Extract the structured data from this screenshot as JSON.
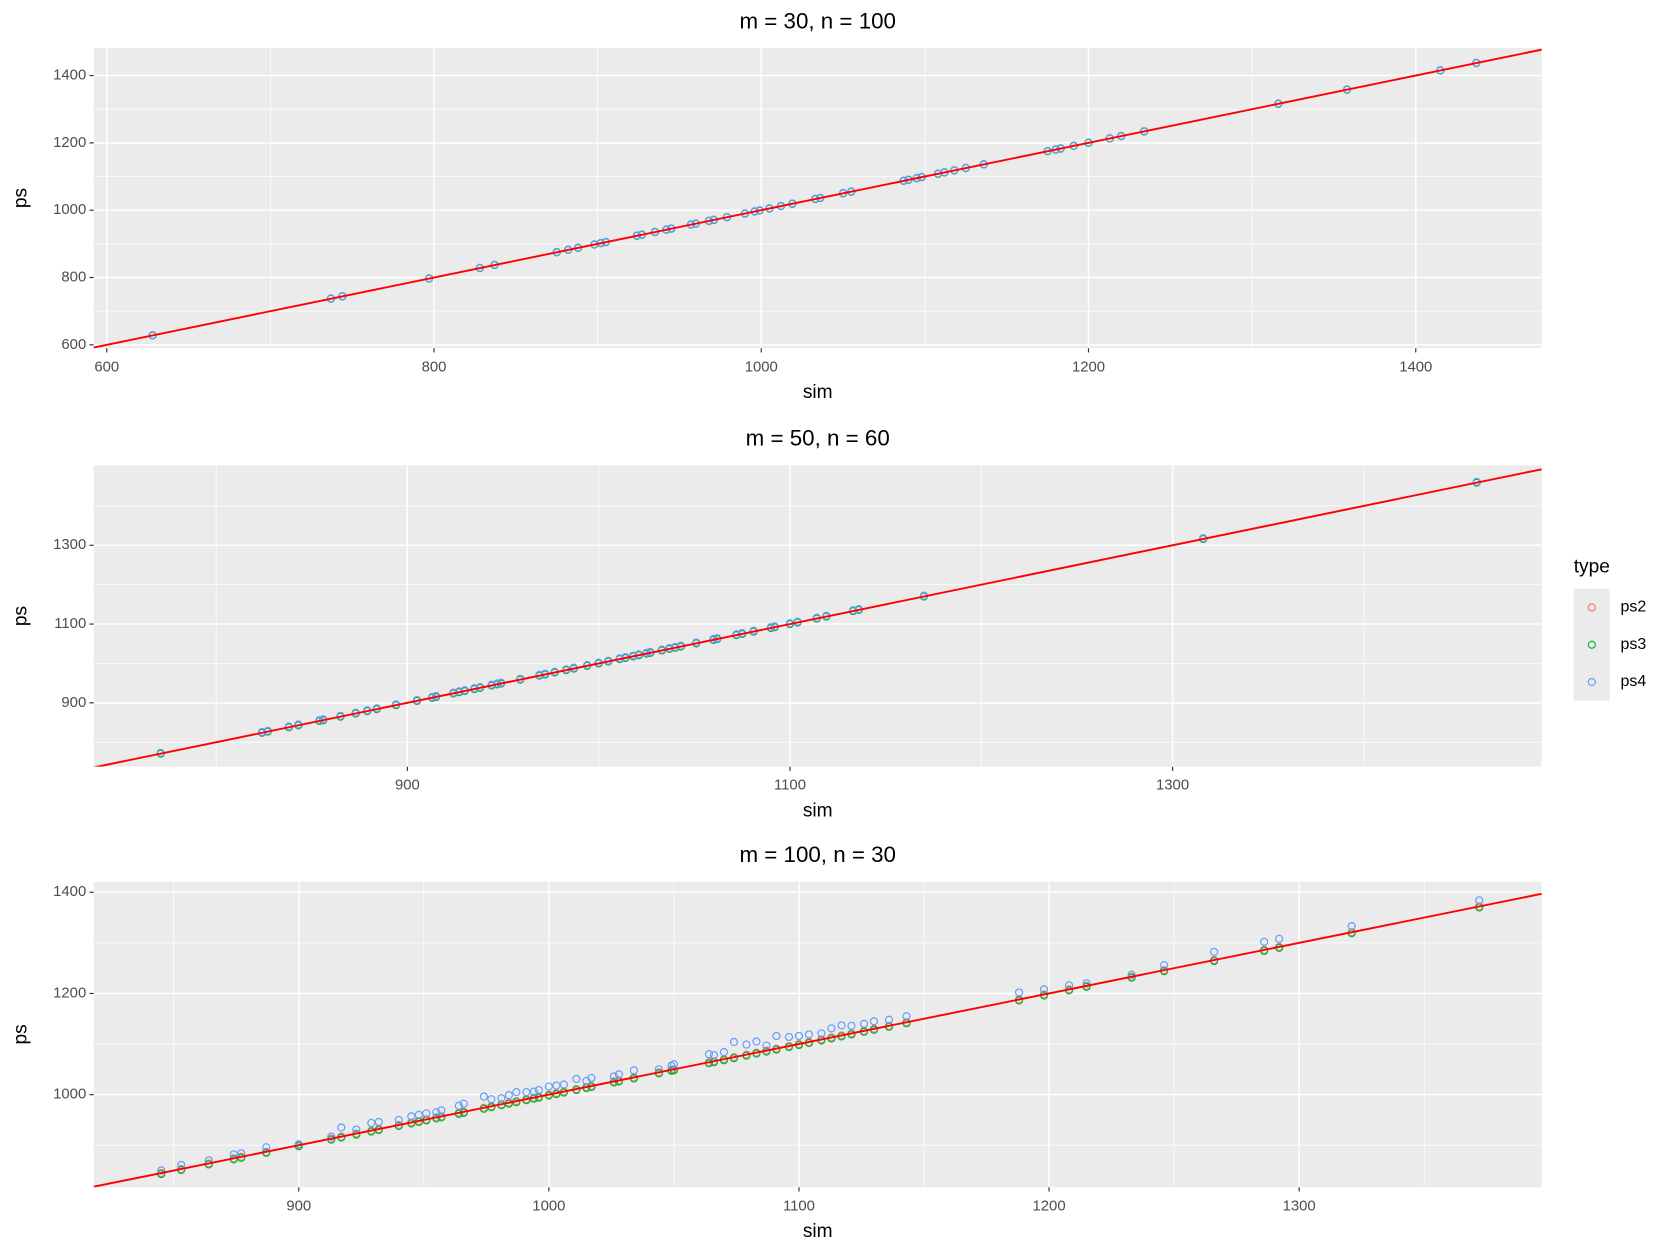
{
  "chart_data": [
    {
      "type": "scatter",
      "title": "m = 30, n = 100",
      "x_label": "sim",
      "y_label": "ps",
      "xlim": [
        592,
        1477
      ],
      "ylim": [
        590,
        1482
      ],
      "xticks": [
        600,
        800,
        1000,
        1200,
        1400
      ],
      "yticks": [
        600,
        800,
        1000,
        1200,
        1400
      ],
      "grid": true,
      "legend": {
        "title": "type",
        "position": "right"
      },
      "abline": {
        "intercept": 0,
        "slope": 1,
        "color": "#ff0000"
      },
      "x": [
        628,
        737,
        744,
        797,
        828,
        837,
        875,
        882,
        888,
        898,
        902,
        905,
        924,
        927,
        935,
        942,
        945,
        957,
        960,
        968,
        971,
        979,
        990,
        996,
        999,
        1005,
        1012,
        1019,
        1033,
        1036,
        1050,
        1055,
        1087,
        1090,
        1095,
        1098,
        1108,
        1112,
        1118,
        1125,
        1136,
        1175,
        1180,
        1183,
        1191,
        1200,
        1213,
        1220,
        1234,
        1316,
        1358,
        1415,
        1437
      ],
      "series": [
        {
          "name": "ps2",
          "color": "#F8766D",
          "values": [
            628,
            737,
            744,
            797,
            828,
            837,
            875,
            882,
            888,
            898,
            902,
            905,
            924,
            927,
            935,
            942,
            945,
            957,
            960,
            968,
            971,
            979,
            990,
            996,
            999,
            1005,
            1012,
            1019,
            1033,
            1036,
            1050,
            1055,
            1087,
            1090,
            1095,
            1098,
            1108,
            1112,
            1118,
            1125,
            1136,
            1175,
            1180,
            1183,
            1191,
            1200,
            1213,
            1220,
            1234,
            1316,
            1358,
            1415,
            1437
          ]
        },
        {
          "name": "ps3",
          "color": "#00BA38",
          "values": [
            628,
            737,
            744,
            797,
            828,
            837,
            875,
            882,
            888,
            898,
            902,
            905,
            924,
            927,
            935,
            942,
            945,
            957,
            960,
            968,
            971,
            979,
            990,
            996,
            999,
            1005,
            1012,
            1019,
            1033,
            1036,
            1050,
            1055,
            1087,
            1090,
            1095,
            1098,
            1108,
            1112,
            1118,
            1125,
            1136,
            1175,
            1180,
            1183,
            1191,
            1200,
            1213,
            1220,
            1234,
            1316,
            1358,
            1415,
            1437
          ]
        },
        {
          "name": "ps4",
          "color": "#619CFF",
          "values": [
            629,
            738,
            745,
            798,
            829,
            838,
            876,
            883,
            889,
            899,
            903,
            906,
            925,
            928,
            936,
            943,
            946,
            958,
            961,
            969,
            972,
            980,
            991,
            997,
            1000,
            1006,
            1013,
            1020,
            1034,
            1037,
            1051,
            1056,
            1088,
            1091,
            1096,
            1099,
            1109,
            1113,
            1119,
            1126,
            1137,
            1176,
            1181,
            1184,
            1192,
            1201,
            1214,
            1221,
            1235,
            1317,
            1359,
            1416,
            1438
          ]
        }
      ]
    },
    {
      "type": "scatter",
      "title": "m = 50, n = 60",
      "x_label": "sim",
      "y_label": "ps",
      "xlim": [
        736,
        1493
      ],
      "ylim": [
        738,
        1503
      ],
      "xticks": [
        900,
        1100,
        1300
      ],
      "yticks": [
        900,
        1100,
        1300
      ],
      "grid": true,
      "abline": {
        "intercept": 0,
        "slope": 1,
        "color": "#ff0000"
      },
      "x": [
        771,
        824,
        827,
        838,
        843,
        854,
        856,
        865,
        873,
        879,
        884,
        894,
        905,
        913,
        915,
        924,
        927,
        930,
        935,
        938,
        944,
        947,
        949,
        959,
        969,
        972,
        977,
        983,
        987,
        994,
        1000,
        1005,
        1011,
        1014,
        1018,
        1021,
        1025,
        1027,
        1033,
        1037,
        1040,
        1043,
        1051,
        1060,
        1062,
        1072,
        1075,
        1081,
        1090,
        1092,
        1100,
        1104,
        1114,
        1119,
        1133,
        1136,
        1170,
        1316,
        1459
      ],
      "series": [
        {
          "name": "ps2",
          "color": "#F8766D",
          "values": [
            771,
            824,
            827,
            838,
            843,
            854,
            856,
            865,
            873,
            879,
            884,
            894,
            905,
            913,
            915,
            924,
            927,
            930,
            935,
            938,
            944,
            947,
            949,
            959,
            969,
            972,
            977,
            983,
            987,
            994,
            1000,
            1005,
            1011,
            1014,
            1018,
            1021,
            1025,
            1027,
            1033,
            1037,
            1040,
            1043,
            1051,
            1060,
            1062,
            1072,
            1075,
            1081,
            1090,
            1092,
            1100,
            1104,
            1114,
            1119,
            1133,
            1136,
            1170,
            1316,
            1459
          ]
        },
        {
          "name": "ps3",
          "color": "#00BA38",
          "values": [
            771,
            824,
            827,
            838,
            843,
            854,
            856,
            865,
            873,
            879,
            884,
            894,
            905,
            913,
            915,
            924,
            927,
            930,
            935,
            938,
            944,
            947,
            949,
            959,
            969,
            972,
            977,
            983,
            987,
            994,
            1000,
            1005,
            1011,
            1014,
            1018,
            1021,
            1025,
            1027,
            1033,
            1037,
            1040,
            1043,
            1051,
            1060,
            1062,
            1072,
            1075,
            1081,
            1090,
            1092,
            1100,
            1104,
            1114,
            1119,
            1133,
            1136,
            1170,
            1316,
            1459
          ]
        },
        {
          "name": "ps4",
          "color": "#619CFF",
          "values": [
            773,
            826,
            829,
            840,
            845,
            856,
            858,
            867,
            875,
            881,
            886,
            896,
            907,
            915,
            917,
            926,
            929,
            932,
            937,
            940,
            946,
            949,
            951,
            961,
            971,
            974,
            979,
            985,
            989,
            996,
            1002,
            1007,
            1013,
            1016,
            1020,
            1023,
            1027,
            1029,
            1035,
            1039,
            1042,
            1045,
            1053,
            1062,
            1064,
            1074,
            1077,
            1083,
            1092,
            1094,
            1102,
            1106,
            1116,
            1121,
            1135,
            1138,
            1172,
            1318,
            1461
          ]
        }
      ]
    },
    {
      "type": "scatter",
      "title": "m = 100, n = 30",
      "x_label": "sim",
      "y_label": "ps",
      "xlim": [
        818,
        1397
      ],
      "ylim": [
        817,
        1421
      ],
      "xticks": [
        900,
        1000,
        1100,
        1200,
        1300
      ],
      "yticks": [
        1000,
        1200,
        1400
      ],
      "grid": true,
      "abline": {
        "intercept": 0,
        "slope": 1,
        "color": "#ff0000"
      },
      "x": [
        845,
        853,
        864,
        874,
        877,
        887,
        900,
        913,
        917,
        923,
        929,
        932,
        940,
        945,
        948,
        951,
        955,
        957,
        964,
        966,
        974,
        977,
        981,
        984,
        987,
        991,
        994,
        996,
        1000,
        1003,
        1006,
        1011,
        1015,
        1017,
        1026,
        1028,
        1034,
        1044,
        1049,
        1050,
        1064,
        1066,
        1070,
        1074,
        1079,
        1083,
        1087,
        1091,
        1096,
        1100,
        1104,
        1109,
        1113,
        1117,
        1121,
        1126,
        1130,
        1136,
        1143,
        1188,
        1198,
        1208,
        1215,
        1233,
        1246,
        1266,
        1286,
        1292,
        1321,
        1372
      ],
      "series": [
        {
          "name": "ps2",
          "color": "#F8766D",
          "values": [
            845,
            853,
            864,
            874,
            877,
            887,
            900,
            913,
            917,
            923,
            929,
            932,
            940,
            945,
            948,
            951,
            955,
            957,
            964,
            966,
            974,
            977,
            981,
            984,
            987,
            991,
            994,
            996,
            1000,
            1003,
            1006,
            1011,
            1015,
            1017,
            1026,
            1028,
            1034,
            1044,
            1049,
            1050,
            1064,
            1066,
            1070,
            1074,
            1079,
            1083,
            1087,
            1091,
            1096,
            1100,
            1104,
            1109,
            1113,
            1117,
            1121,
            1126,
            1130,
            1136,
            1143,
            1188,
            1198,
            1208,
            1215,
            1233,
            1246,
            1266,
            1286,
            1292,
            1321,
            1372
          ]
        },
        {
          "name": "ps3",
          "color": "#00BA38",
          "values": [
            843,
            851,
            862,
            872,
            875,
            885,
            898,
            911,
            915,
            921,
            927,
            930,
            938,
            943,
            946,
            949,
            953,
            955,
            962,
            964,
            972,
            975,
            979,
            982,
            985,
            989,
            992,
            994,
            998,
            1001,
            1004,
            1009,
            1013,
            1015,
            1024,
            1026,
            1032,
            1042,
            1047,
            1048,
            1062,
            1064,
            1068,
            1072,
            1077,
            1081,
            1085,
            1089,
            1094,
            1098,
            1102,
            1107,
            1111,
            1115,
            1119,
            1124,
            1128,
            1134,
            1141,
            1186,
            1196,
            1206,
            1213,
            1231,
            1244,
            1264,
            1284,
            1290,
            1319,
            1370
          ]
        },
        {
          "name": "ps4",
          "color": "#619CFF",
          "values": [
            850,
            861,
            870,
            882,
            884,
            896,
            902,
            917,
            935,
            931,
            944,
            946,
            950,
            957,
            960,
            963,
            965,
            969,
            978,
            982,
            996,
            991,
            993,
            999,
            1005,
            1005,
            1006,
            1009,
            1016,
            1018,
            1020,
            1031,
            1027,
            1033,
            1036,
            1040,
            1048,
            1050,
            1057,
            1060,
            1080,
            1078,
            1084,
            1104,
            1099,
            1105,
            1097,
            1116,
            1114,
            1116,
            1119,
            1121,
            1131,
            1137,
            1136,
            1140,
            1145,
            1148,
            1155,
            1202,
            1208,
            1216,
            1220,
            1237,
            1256,
            1282,
            1302,
            1308,
            1333,
            1384
          ]
        }
      ]
    }
  ]
}
